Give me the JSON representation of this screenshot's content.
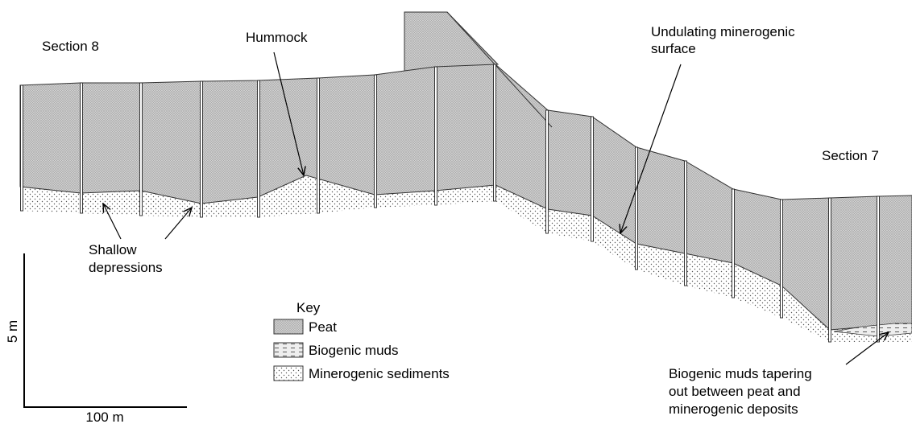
{
  "labels": {
    "section_8": "Section 8",
    "section_7": "Section 7",
    "hummock": "Hummock",
    "undulating": [
      "Undulating minerogenic",
      "surface"
    ],
    "shallow": [
      "Shallow",
      "depressions"
    ],
    "tapering": [
      "Biogenic muds tapering",
      "out between peat and",
      "minerogenic deposits"
    ]
  },
  "key": {
    "title": "Key",
    "items": [
      "Peat",
      "Biogenic muds",
      "Minerogenic sediments"
    ]
  },
  "scale": {
    "vertical": "5 m",
    "horizontal": "100 m"
  }
}
